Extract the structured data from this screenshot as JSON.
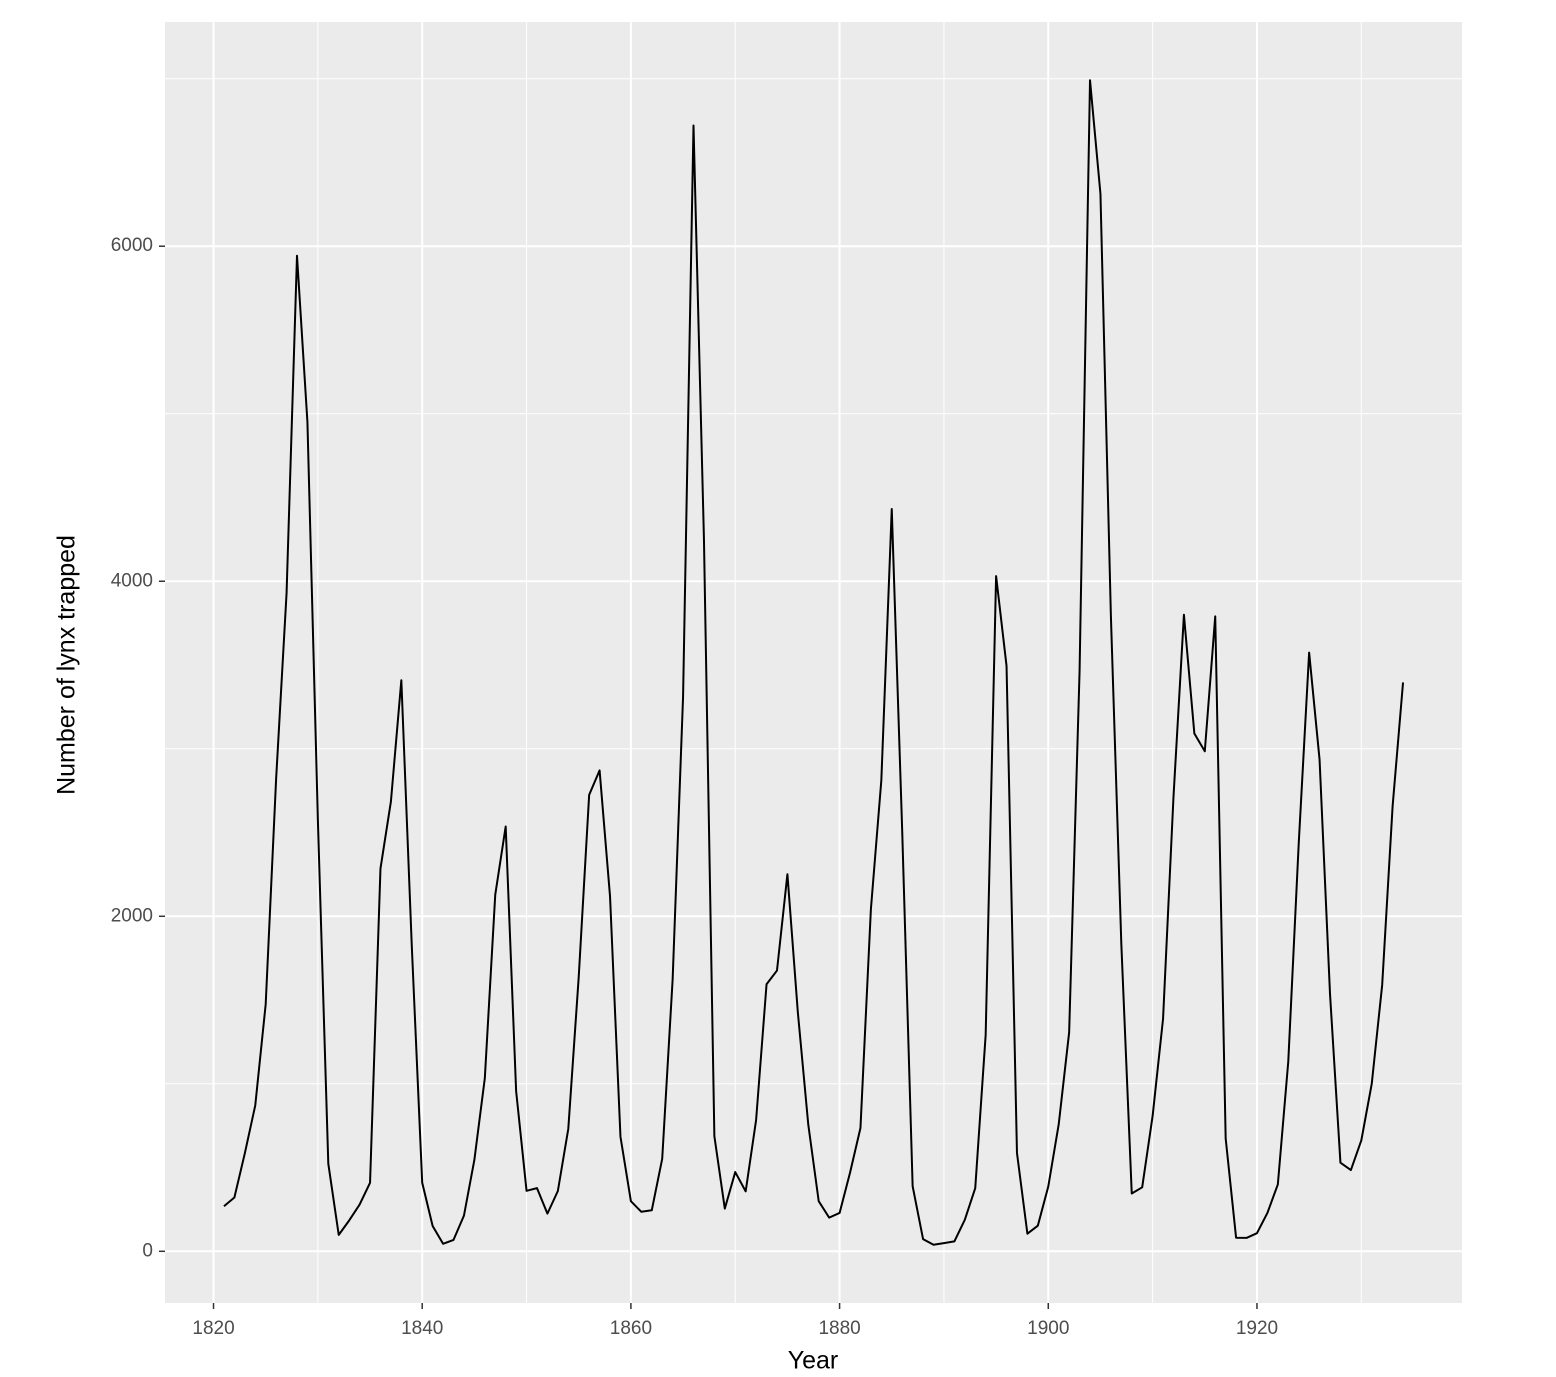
{
  "chart_data": {
    "type": "line",
    "x_label": "Year",
    "y_label": "Number of lynx trapped",
    "x": [
      1821,
      1822,
      1823,
      1824,
      1825,
      1826,
      1827,
      1828,
      1829,
      1830,
      1831,
      1832,
      1833,
      1834,
      1835,
      1836,
      1837,
      1838,
      1839,
      1840,
      1841,
      1842,
      1843,
      1844,
      1845,
      1846,
      1847,
      1848,
      1849,
      1850,
      1851,
      1852,
      1853,
      1854,
      1855,
      1856,
      1857,
      1858,
      1859,
      1860,
      1861,
      1862,
      1863,
      1864,
      1865,
      1866,
      1867,
      1868,
      1869,
      1870,
      1871,
      1872,
      1873,
      1874,
      1875,
      1876,
      1877,
      1878,
      1879,
      1880,
      1881,
      1882,
      1883,
      1884,
      1885,
      1886,
      1887,
      1888,
      1889,
      1890,
      1891,
      1892,
      1893,
      1894,
      1895,
      1896,
      1897,
      1898,
      1899,
      1900,
      1901,
      1902,
      1903,
      1904,
      1905,
      1906,
      1907,
      1908,
      1909,
      1910,
      1911,
      1912,
      1913,
      1914,
      1915,
      1916,
      1917,
      1918,
      1919,
      1920,
      1921,
      1922,
      1923,
      1924,
      1925,
      1926,
      1927,
      1928,
      1929,
      1930,
      1931,
      1932,
      1933,
      1934
    ],
    "series": [
      {
        "name": "lynx",
        "color": "#000000",
        "values": [
          269,
          321,
          585,
          871,
          1475,
          2821,
          3928,
          5943,
          4950,
          2577,
          523,
          98,
          184,
          279,
          409,
          2285,
          2685,
          3409,
          1824,
          409,
          151,
          45,
          68,
          213,
          546,
          1033,
          2129,
          2536,
          957,
          361,
          377,
          225,
          360,
          731,
          1638,
          2725,
          2871,
          2119,
          684,
          299,
          236,
          245,
          552,
          1623,
          3311,
          6721,
          4254,
          687,
          255,
          473,
          358,
          784,
          1594,
          1676,
          2251,
          1426,
          756,
          299,
          201,
          229,
          469,
          736,
          2042,
          2811,
          4431,
          2511,
          389,
          73,
          39,
          49,
          59,
          188,
          377,
          1292,
          4031,
          3495,
          587,
          105,
          153,
          387,
          758,
          1307,
          3465,
          6991,
          6313,
          3794,
          1836,
          345,
          382,
          808,
          1388,
          2713,
          3800,
          3091,
          2985,
          3790,
          674,
          81,
          80,
          108,
          229,
          399,
          1132,
          2432,
          3574,
          2935,
          1537,
          529,
          485,
          662,
          1000,
          1590,
          2657,
          3396
        ]
      }
    ],
    "xlim": [
      1815.35,
      1939.65
    ],
    "xticks": [
      1820,
      1840,
      1860,
      1880,
      1900,
      1920
    ],
    "ylim": [
      -308.6,
      7338.6
    ],
    "yticks": [
      0,
      2000,
      4000,
      6000
    ],
    "grid": true
  }
}
